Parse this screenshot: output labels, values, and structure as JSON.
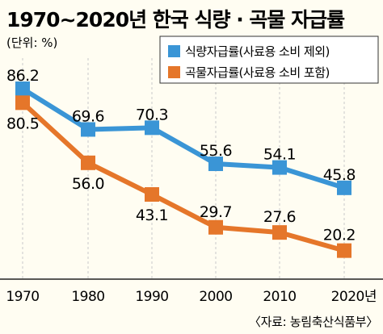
{
  "chart_data": {
    "type": "line",
    "title": "1970~2020년 한국 식량 · 곡물 자급률",
    "unit_label": "(단위: %)",
    "categories": [
      "1970",
      "1980",
      "1990",
      "2000",
      "2010",
      "2020년"
    ],
    "series": [
      {
        "name": "식량자급률(사료용 소비 제외)",
        "color": "#3a95d6",
        "values": [
          86.2,
          69.6,
          70.3,
          55.6,
          54.1,
          45.8
        ],
        "labels": [
          "86.2",
          "69.6",
          "70.3",
          "55.6",
          "54.1",
          "45.8"
        ]
      },
      {
        "name": "곡물자급률(사료용 소비 포함)",
        "color": "#e5762a",
        "values": [
          80.5,
          56.0,
          43.1,
          29.7,
          27.6,
          20.2
        ],
        "labels": [
          "80.5",
          "56.0",
          "43.1",
          "29.7",
          "27.6",
          "20.2"
        ]
      }
    ],
    "legend_position": "top-right",
    "grid": true,
    "source": "〈자료: 농림축산식품부〉"
  }
}
